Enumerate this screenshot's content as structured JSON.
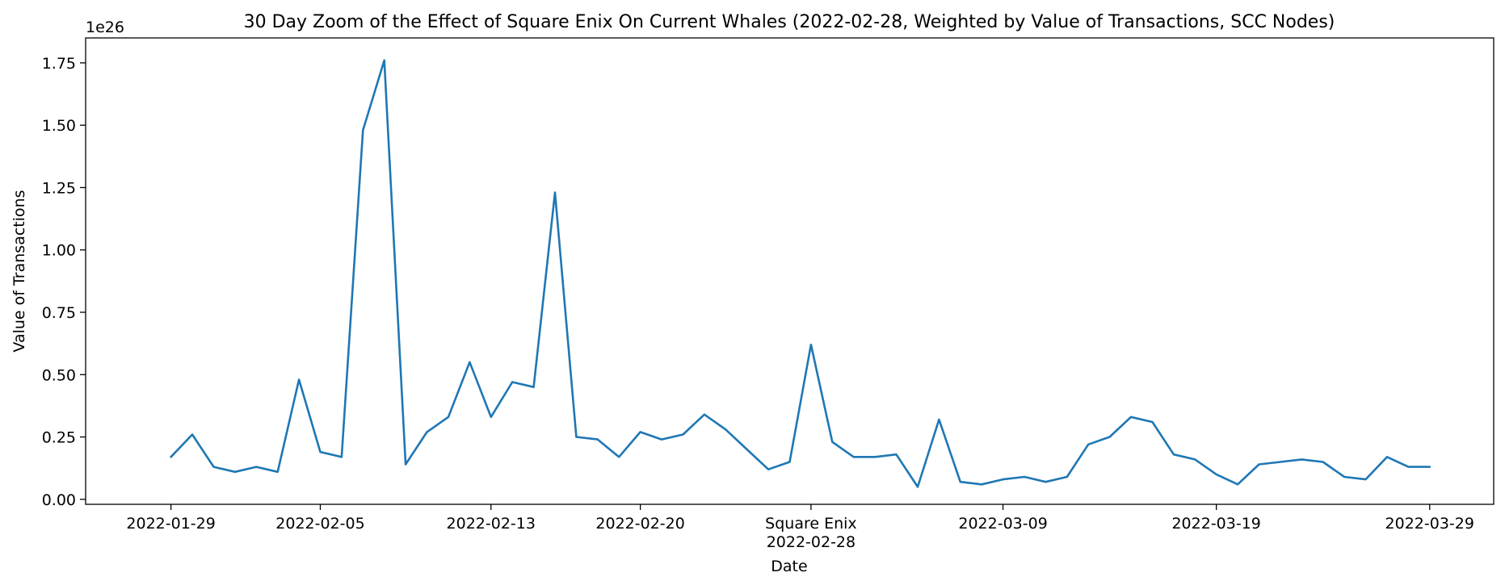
{
  "chart_data": {
    "type": "line",
    "title": "30 Day Zoom of the Effect of Square Enix On Current Whales (2022-02-28, Weighted by Value of Transactions, SCC Nodes)",
    "xlabel": "Date",
    "ylabel": "Value of Transactions",
    "y_offset_label": "1e26",
    "y_scale_exponent": 26,
    "ylim": [
      -0.02,
      1.85
    ],
    "y_ticks": [
      0.0,
      0.25,
      0.5,
      0.75,
      1.0,
      1.25,
      1.5,
      1.75
    ],
    "y_tick_labels": [
      "0.00",
      "0.25",
      "0.50",
      "0.75",
      "1.00",
      "1.25",
      "1.50",
      "1.75"
    ],
    "xlim": [
      "2022-01-25",
      "2022-04-01"
    ],
    "x_ticks": [
      {
        "date": "2022-01-29",
        "label": "2022-01-29"
      },
      {
        "date": "2022-02-05",
        "label": "2022-02-05"
      },
      {
        "date": "2022-02-13",
        "label": "2022-02-13"
      },
      {
        "date": "2022-02-20",
        "label": "2022-02-20"
      },
      {
        "date": "2022-02-28",
        "label": "Square Enix",
        "label2": "2022-02-28"
      },
      {
        "date": "2022-03-09",
        "label": "2022-03-09"
      },
      {
        "date": "2022-03-19",
        "label": "2022-03-19"
      },
      {
        "date": "2022-03-29",
        "label": "2022-03-29"
      }
    ],
    "grid": false,
    "series": [
      {
        "color": "#1f77b4",
        "x": [
          "2022-01-29",
          "2022-01-30",
          "2022-01-31",
          "2022-02-01",
          "2022-02-02",
          "2022-02-03",
          "2022-02-04",
          "2022-02-05",
          "2022-02-06",
          "2022-02-07",
          "2022-02-08",
          "2022-02-09",
          "2022-02-10",
          "2022-02-11",
          "2022-02-12",
          "2022-02-13",
          "2022-02-14",
          "2022-02-15",
          "2022-02-16",
          "2022-02-17",
          "2022-02-18",
          "2022-02-19",
          "2022-02-20",
          "2022-02-21",
          "2022-02-22",
          "2022-02-23",
          "2022-02-24",
          "2022-02-25",
          "2022-02-26",
          "2022-02-27",
          "2022-02-28",
          "2022-03-01",
          "2022-03-02",
          "2022-03-03",
          "2022-03-04",
          "2022-03-05",
          "2022-03-06",
          "2022-03-07",
          "2022-03-08",
          "2022-03-09",
          "2022-03-10",
          "2022-03-11",
          "2022-03-12",
          "2022-03-13",
          "2022-03-14",
          "2022-03-15",
          "2022-03-16",
          "2022-03-17",
          "2022-03-18",
          "2022-03-19",
          "2022-03-20",
          "2022-03-21",
          "2022-03-22",
          "2022-03-23",
          "2022-03-24",
          "2022-03-25",
          "2022-03-26",
          "2022-03-27",
          "2022-03-28",
          "2022-03-29"
        ],
        "values": [
          0.17,
          0.26,
          0.13,
          0.11,
          0.13,
          0.11,
          0.48,
          0.19,
          0.17,
          1.48,
          1.76,
          0.14,
          0.27,
          0.33,
          0.55,
          0.33,
          0.47,
          0.45,
          1.23,
          0.25,
          0.24,
          0.17,
          0.27,
          0.24,
          0.26,
          0.34,
          0.28,
          0.2,
          0.12,
          0.15,
          0.62,
          0.23,
          0.17,
          0.17,
          0.18,
          0.05,
          0.32,
          0.07,
          0.06,
          0.08,
          0.09,
          0.07,
          0.09,
          0.22,
          0.25,
          0.33,
          0.31,
          0.18,
          0.16,
          0.1,
          0.06,
          0.14,
          0.15,
          0.16,
          0.15,
          0.09,
          0.08,
          0.17,
          0.13,
          0.13
        ]
      }
    ]
  }
}
